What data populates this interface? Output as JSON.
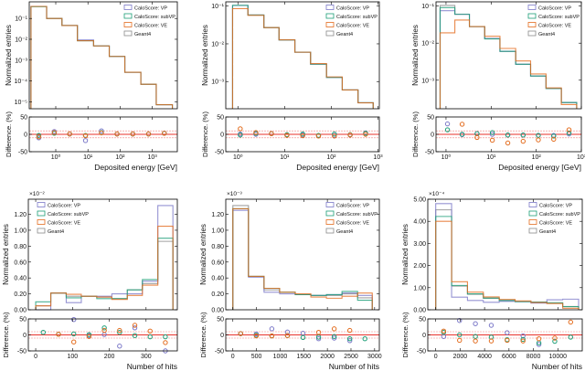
{
  "legend": [
    "CaloScore: VP",
    "CaloScore: subVP",
    "CaloScore: VE",
    "Geant4"
  ],
  "colors": {
    "VP": "#7b78c8",
    "subVP": "#1b9e77",
    "VE": "#e36c1e",
    "Geant4": "#8a8a8a",
    "ref_line": "#e8322b"
  },
  "ylabel_main": "Normalized entries",
  "ylabel_ratio": "Difference. (%)",
  "chart_data": [
    {
      "type": "histogram",
      "xlabel": "Deposited energy [GeV]",
      "xscale": "log",
      "yscale": "log",
      "xlim": [
        0.15,
        6000
      ],
      "ylim": [
        4.6e-06,
        0.63
      ],
      "legend_position": "top-right",
      "multiplier": "",
      "xticks": [
        1,
        10,
        100,
        1000
      ],
      "xtick_labels": [
        "10⁰",
        "10¹",
        "10²",
        "10³"
      ],
      "yticks": [
        0.1,
        0.01,
        0.001,
        0.0001,
        1e-05
      ],
      "ytick_labels": [
        "10⁻¹",
        "10⁻²",
        "10⁻³",
        "10⁻⁴",
        "10⁻⁵"
      ],
      "bin_edges": [
        0.17,
        0.52,
        1.56,
        4.7,
        15,
        46,
        140,
        440,
        1330,
        4200
      ],
      "series": {
        "VP": [
          0.38,
          0.1,
          0.046,
          0.0093,
          0.0048,
          0.0015,
          0.00026,
          6.9e-05,
          7.2e-06
        ],
        "subVP": [
          0.37,
          0.1,
          0.046,
          0.0085,
          0.0048,
          0.0015,
          0.00026,
          6.9e-05,
          7.2e-06
        ],
        "VE": [
          0.38,
          0.1,
          0.046,
          0.0085,
          0.0048,
          0.0015,
          0.00026,
          6.9e-05,
          7.2e-06
        ],
        "Geant4": [
          0.38,
          0.1,
          0.046,
          0.0085,
          0.0048,
          0.0015,
          0.00026,
          6.9e-05,
          7.2e-06
        ]
      },
      "difference": {
        "VP": [
          -10,
          8,
          1,
          -18,
          10,
          1,
          1,
          1,
          3
        ],
        "subVP": [
          -3,
          3,
          1,
          -3,
          5,
          1,
          1,
          1,
          3
        ],
        "VE": [
          -7,
          5,
          1,
          -4,
          4,
          1,
          1,
          1,
          3
        ]
      }
    },
    {
      "type": "histogram",
      "xlabel": "Deposited energy [GeV]",
      "xscale": "log",
      "yscale": "log",
      "xlim": [
        0.55,
        1070
      ],
      "ylim": [
        0.00019,
        0.13
      ],
      "legend_position": "top-right",
      "multiplier": "",
      "xticks": [
        1,
        10,
        100,
        1000
      ],
      "xtick_labels": [
        "10⁰",
        "10¹",
        "10²",
        "10³"
      ],
      "yticks": [
        0.1,
        0.01,
        0.001
      ],
      "ytick_labels": [
        "10⁻¹",
        "10⁻²",
        "10⁻³"
      ],
      "bin_edges": [
        0.77,
        1.64,
        3.6,
        7.6,
        16.6,
        36,
        79,
        172,
        374,
        790
      ],
      "series": {
        "VP": [
          0.104,
          0.058,
          0.027,
          0.0127,
          0.006,
          0.0029,
          0.00129,
          0.0006,
          0.000275
        ],
        "subVP": [
          0.105,
          0.058,
          0.027,
          0.0127,
          0.006,
          0.0029,
          0.00129,
          0.0006,
          0.000275
        ],
        "VE": [
          0.086,
          0.057,
          0.027,
          0.0128,
          0.006,
          0.003,
          0.00133,
          0.0006,
          0.000272
        ],
        "Geant4": [
          0.104,
          0.058,
          0.027,
          0.0127,
          0.006,
          0.0029,
          0.00129,
          0.0006,
          0.000275
        ]
      },
      "difference": {
        "VP": [
          1,
          0,
          2,
          -2,
          -2,
          -4,
          -3,
          -2,
          4
        ],
        "subVP": [
          -2,
          3,
          2,
          -1,
          1,
          -3,
          1,
          -1,
          3
        ],
        "VE": [
          16,
          5,
          2,
          -3,
          -4,
          -5,
          -5,
          -2,
          0
        ]
      }
    },
    {
      "type": "histogram",
      "xlabel": "Deposited energy [GeV]",
      "xscale": "log",
      "yscale": "log",
      "xlim": [
        0.6,
        1000
      ],
      "ylim": [
        0.00017,
        0.13
      ],
      "legend_position": "top-right",
      "multiplier": "",
      "xticks": [
        1,
        10,
        100,
        1000
      ],
      "xtick_labels": [
        "10⁰",
        "10¹",
        "10²",
        "10³"
      ],
      "yticks": [
        0.1,
        0.01,
        0.001
      ],
      "ytick_labels": [
        "10⁻¹",
        "10⁻²",
        "10⁻³"
      ],
      "bin_edges": [
        0.74,
        1.57,
        3.3,
        7.2,
        15.7,
        35,
        75,
        165,
        360,
        790
      ],
      "series": {
        "VP": [
          0.075,
          0.06,
          0.028,
          0.0133,
          0.006,
          0.0027,
          0.0013,
          0.0006,
          0.00025
        ],
        "subVP": [
          0.091,
          0.06,
          0.028,
          0.013,
          0.006,
          0.0027,
          0.0013,
          0.0006,
          0.00025
        ],
        "VE": [
          0.019,
          0.042,
          0.028,
          0.0153,
          0.0072,
          0.0033,
          0.00147,
          0.00062,
          0.00022
        ],
        "Geant4": [
          0.104,
          0.06,
          0.028,
          0.0133,
          0.006,
          0.0027,
          0.0013,
          0.0006,
          0.00025
        ]
      },
      "difference": {
        "VP": [
          30,
          -1,
          2,
          0,
          -2,
          -2,
          -3,
          -3,
          1
        ],
        "subVP": [
          13,
          0,
          2,
          5,
          -2,
          -2,
          -3,
          -5,
          4
        ],
        "VE": [
          null,
          29,
          -9,
          -17,
          -25,
          -20,
          -16,
          -14,
          13
        ]
      }
    },
    {
      "type": "histogram",
      "xlabel": "Number of hits",
      "xscale": "linear",
      "yscale": "linear",
      "xlim": [
        -20,
        385
      ],
      "ylim": [
        0,
        1.39
      ],
      "legend_position": "top-left",
      "multiplier": "×10⁻²",
      "xticks": [
        0,
        100,
        200,
        300
      ],
      "xtick_labels": [
        "0",
        "100",
        "200",
        "300"
      ],
      "yticks": [
        0,
        0.2,
        0.4,
        0.6,
        0.8,
        1.0,
        1.2
      ],
      "ytick_labels": [
        "0.00",
        "0.20",
        "0.40",
        "0.60",
        "0.80",
        "1.00",
        "1.20"
      ],
      "bin_edges": [
        0,
        41,
        83,
        124,
        166,
        207,
        249,
        290,
        332,
        373
      ],
      "series": {
        "VP": [
          0.0,
          0.21,
          0.09,
          0.17,
          0.17,
          0.2,
          0.2,
          0.36,
          1.31
        ],
        "subVP": [
          0.1,
          0.21,
          0.15,
          0.17,
          0.14,
          0.14,
          0.25,
          0.38,
          0.9
        ],
        "VE": [
          0.05,
          0.21,
          0.195,
          0.17,
          0.16,
          0.13,
          0.18,
          0.31,
          1.05
        ],
        "Geant4": [
          0.05,
          0.21,
          0.17,
          0.17,
          0.16,
          0.14,
          0.25,
          0.33,
          0.86
        ]
      },
      "difference": {
        "VP": [
          null,
          null,
          48,
          -2,
          1,
          -35,
          22,
          null,
          -50
        ],
        "subVP": [
          8,
          2,
          3,
          1,
          22,
          8,
          -2,
          -6,
          -6
        ],
        "VE": [
          null,
          2,
          -22,
          -5,
          14,
          14,
          30,
          12,
          -24
        ]
      }
    },
    {
      "type": "histogram",
      "xlabel": "Number of hits",
      "xscale": "linear",
      "yscale": "linear",
      "xlim": [
        -150,
        3100
      ],
      "ylim": [
        0,
        1.39
      ],
      "legend_position": "top-right",
      "multiplier": "×10⁻³",
      "xticks": [
        0,
        500,
        1000,
        1500,
        2000,
        2500,
        3000
      ],
      "xtick_labels": [
        "0",
        "500",
        "1000",
        "1500",
        "2000",
        "2500",
        "3000"
      ],
      "yticks": [
        0,
        0.2,
        0.4,
        0.6,
        0.8,
        1.0,
        1.2
      ],
      "ytick_labels": [
        "0.00",
        "0.20",
        "0.40",
        "0.60",
        "0.80",
        "1.00",
        "1.20"
      ],
      "bin_edges": [
        0,
        330,
        660,
        990,
        1320,
        1650,
        1980,
        2310,
        2640,
        2950
      ],
      "series": {
        "VP": [
          1.25,
          0.41,
          0.22,
          0.2,
          0.19,
          0.18,
          0.19,
          0.21,
          0.18
        ],
        "subVP": [
          1.27,
          0.42,
          0.27,
          0.22,
          0.19,
          0.18,
          0.19,
          0.23,
          0.12
        ],
        "VE": [
          1.27,
          0.42,
          0.27,
          0.22,
          0.2,
          0.16,
          0.145,
          0.17,
          0.21
        ],
        "Geant4": [
          1.31,
          0.42,
          0.25,
          0.22,
          0.19,
          0.18,
          0.18,
          0.2,
          0.15
        ]
      },
      "difference": {
        "VP": [
          4,
          3,
          19,
          9,
          5,
          -12,
          -10,
          -18,
          null
        ],
        "subVP": [
          4,
          -1,
          -3,
          -2,
          -8,
          -7,
          -5,
          -12,
          -12
        ],
        "VE": [
          4,
          -3,
          -3,
          -2,
          null,
          8,
          19,
          14,
          null
        ]
      }
    },
    {
      "type": "histogram",
      "xlabel": "Number of hits",
      "xscale": "linear",
      "yscale": "linear",
      "xlim": [
        -650,
        12000
      ],
      "ylim": [
        0,
        5.0
      ],
      "legend_position": "top-right",
      "multiplier": "×10⁻⁴",
      "xticks": [
        0,
        2000,
        4000,
        6000,
        8000,
        10000
      ],
      "xtick_labels": [
        "0",
        "2000",
        "4000",
        "6000",
        "8000",
        "10000"
      ],
      "yticks": [
        0,
        1,
        2,
        3,
        4,
        5
      ],
      "ytick_labels": [
        "0.00",
        "1.00",
        "2.00",
        "3.00",
        "4.00",
        "5.00"
      ],
      "bin_edges": [
        0,
        1300,
        2600,
        3900,
        5200,
        6500,
        7800,
        9100,
        10400,
        11700
      ],
      "series": {
        "VP": [
          4.8,
          0.57,
          0.42,
          0.34,
          0.38,
          0.37,
          0.3,
          0.45,
          0.48
        ],
        "subVP": [
          4.22,
          1.1,
          0.72,
          0.53,
          0.42,
          0.37,
          0.35,
          0.32,
          0.14
        ],
        "VE": [
          4.0,
          1.27,
          0.8,
          0.58,
          0.47,
          0.4,
          0.33,
          0.28,
          0.07
        ],
        "Geant4": [
          4.52,
          1.07,
          0.7,
          0.52,
          0.42,
          0.37,
          0.35,
          0.3,
          0.15
        ]
      },
      "difference": {
        "VP": [
          -5,
          45,
          35,
          30,
          7,
          -3,
          -30,
          null,
          null
        ],
        "subVP": [
          8,
          0,
          -5,
          -7,
          -15,
          -14,
          -25,
          -20,
          -7
        ],
        "VE": [
          12,
          -17,
          -19,
          -19,
          -17,
          -19,
          -12,
          -10,
          40
        ]
      }
    }
  ],
  "ratio_axis": {
    "ylim": [
      -50,
      50
    ],
    "yticks": [
      50,
      0,
      -50
    ],
    "ytick_labels": [
      "50",
      "0",
      "-50"
    ],
    "ref_lines": [
      0,
      10,
      -10
    ]
  }
}
